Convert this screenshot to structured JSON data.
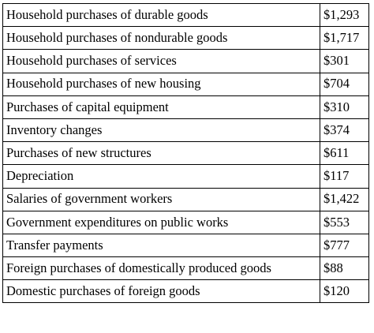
{
  "table": {
    "rows": [
      {
        "label": "Household purchases of durable goods",
        "value": "$1,293"
      },
      {
        "label": "Household purchases of nondurable goods",
        "value": "$1,717"
      },
      {
        "label": "Household purchases of services",
        "value": "$301"
      },
      {
        "label": "Household purchases of new housing",
        "value": "$704"
      },
      {
        "label": "Purchases of capital equipment",
        "value": "$310"
      },
      {
        "label": "Inventory changes",
        "value": "$374"
      },
      {
        "label": "Purchases of new structures",
        "value": "$611"
      },
      {
        "label": "Depreciation",
        "value": "$117"
      },
      {
        "label": "Salaries of government workers",
        "value": "$1,422"
      },
      {
        "label": "Government expenditures on public works",
        "value": "$553"
      },
      {
        "label": "Transfer payments",
        "value": "$777"
      },
      {
        "label": "Foreign purchases of domestically produced goods",
        "value": "$88"
      },
      {
        "label": "Domestic purchases of foreign goods",
        "value": "$120"
      }
    ]
  }
}
